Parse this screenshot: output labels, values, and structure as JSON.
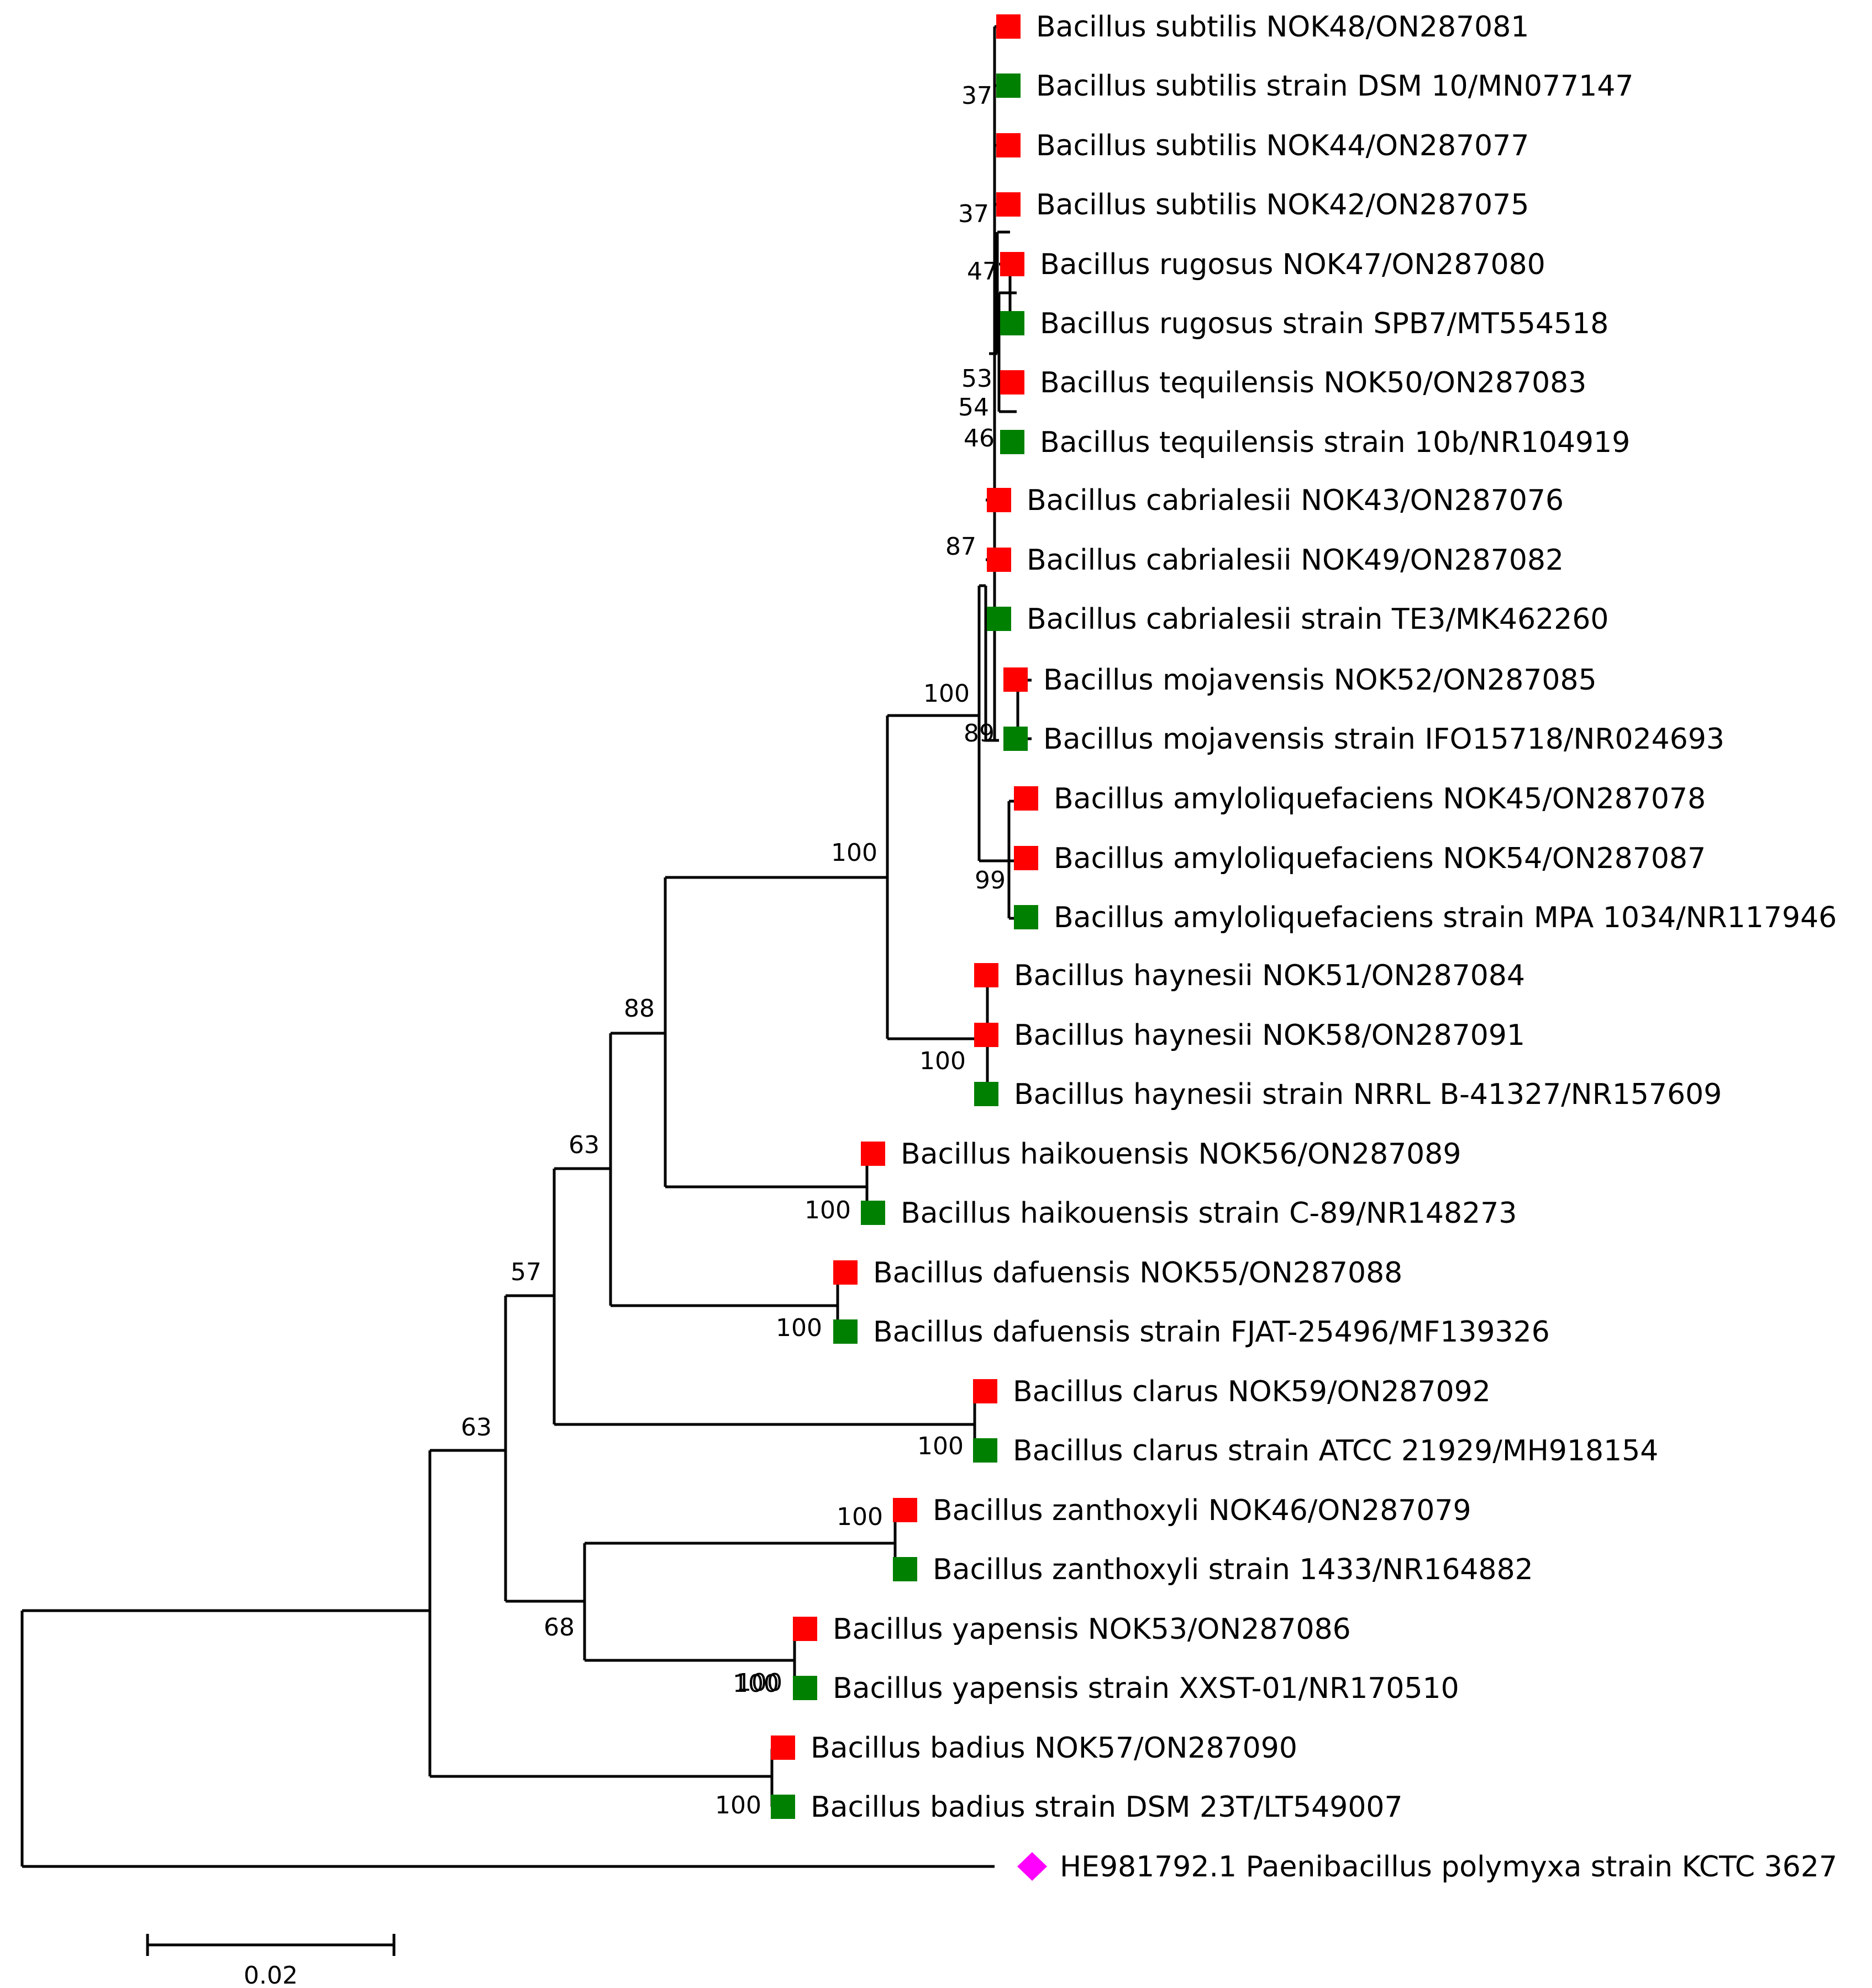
{
  "colors": {
    "isolate": "#ff0000",
    "reference": "#008000",
    "outgroup": "#ff00ff",
    "line": "#000000"
  },
  "leaves": [
    {
      "label": "Bacillus subtilis NOK48/ON287081",
      "marker": "isolate"
    },
    {
      "label": "Bacillus subtilis strain DSM 10/MN077147",
      "marker": "reference"
    },
    {
      "label": "Bacillus subtilis NOK44/ON287077",
      "marker": "isolate"
    },
    {
      "label": "Bacillus subtilis NOK42/ON287075",
      "marker": "isolate"
    },
    {
      "label": "Bacillus rugosus NOK47/ON287080",
      "marker": "isolate"
    },
    {
      "label": "Bacillus rugosus strain SPB7/MT554518",
      "marker": "reference"
    },
    {
      "label": "Bacillus tequilensis NOK50/ON287083",
      "marker": "isolate"
    },
    {
      "label": "Bacillus tequilensis strain 10b/NR104919",
      "marker": "reference"
    },
    {
      "label": "Bacillus cabrialesii NOK43/ON287076",
      "marker": "isolate"
    },
    {
      "label": "Bacillus cabrialesii NOK49/ON287082",
      "marker": "isolate"
    },
    {
      "label": "Bacillus cabrialesii strain TE3/MK462260",
      "marker": "reference"
    },
    {
      "label": "Bacillus mojavensis NOK52/ON287085",
      "marker": "isolate"
    },
    {
      "label": "Bacillus mojavensis strain IFO15718/NR024693",
      "marker": "reference"
    },
    {
      "label": "Bacillus amyloliquefaciens NOK45/ON287078",
      "marker": "isolate"
    },
    {
      "label": "Bacillus amyloliquefaciens NOK54/ON287087",
      "marker": "isolate"
    },
    {
      "label": "Bacillus amyloliquefaciens strain MPA 1034/NR117946",
      "marker": "reference"
    },
    {
      "label": "Bacillus haynesii NOK51/ON287084",
      "marker": "isolate"
    },
    {
      "label": "Bacillus haynesii NOK58/ON287091",
      "marker": "isolate"
    },
    {
      "label": "Bacillus haynesii strain NRRL B-41327/NR157609",
      "marker": "reference"
    },
    {
      "label": "Bacillus haikouensis NOK56/ON287089",
      "marker": "isolate"
    },
    {
      "label": "Bacillus haikouensis strain C-89/NR148273",
      "marker": "reference"
    },
    {
      "label": "Bacillus dafuensis NOK55/ON287088",
      "marker": "isolate"
    },
    {
      "label": "Bacillus dafuensis strain FJAT-25496/MF139326",
      "marker": "reference"
    },
    {
      "label": "Bacillus clarus NOK59/ON287092",
      "marker": "isolate"
    },
    {
      "label": "Bacillus clarus strain ATCC 21929/MH918154",
      "marker": "reference"
    },
    {
      "label": "Bacillus zanthoxyli NOK46/ON287079",
      "marker": "isolate"
    },
    {
      "label": "Bacillus zanthoxyli strain 1433/NR164882",
      "marker": "reference"
    },
    {
      "label": "Bacillus yapensis NOK53/ON287086",
      "marker": "isolate"
    },
    {
      "label": "Bacillus yapensis strain XXST-01/NR170510",
      "marker": "reference"
    },
    {
      "label": "Bacillus badius NOK57/ON287090",
      "marker": "isolate"
    },
    {
      "label": "Bacillus badius strain DSM 23T/LT549007",
      "marker": "reference"
    },
    {
      "label": "HE981792.1 Paenibacillus polymyxa strain KCTC 3627",
      "marker": "outgroup"
    }
  ],
  "bootstrap": [
    "37",
    "37",
    "47",
    "53",
    "54",
    "46",
    "87",
    "100",
    "89",
    "99",
    "100",
    "100",
    "88",
    "100",
    "63",
    "100",
    "57",
    "100",
    "63",
    "100",
    "100",
    "68",
    "100",
    "100"
  ],
  "scale_bar": {
    "label": "0.02"
  }
}
